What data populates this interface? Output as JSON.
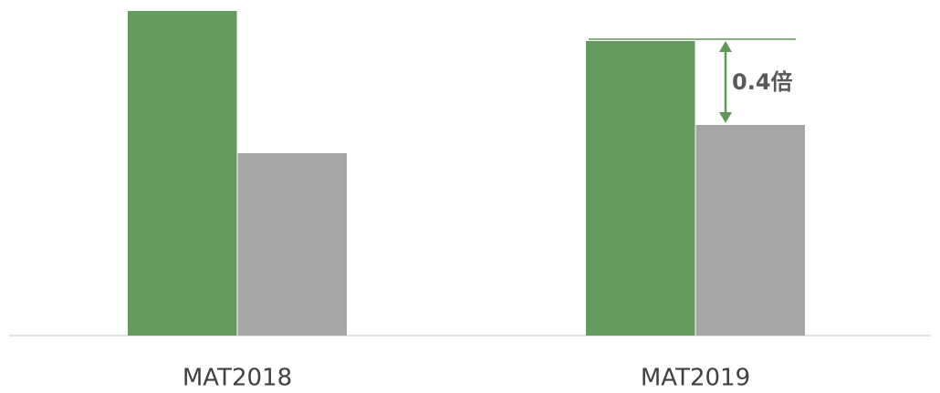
{
  "chart_data": {
    "type": "bar",
    "categories": [
      "MAT2018",
      "MAT2019"
    ],
    "series": [
      {
        "color": "#659a5e",
        "values": [
          356,
          323
        ]
      },
      {
        "color": "#a5a5a5",
        "values": [
          200,
          231
        ]
      }
    ],
    "ylim": [
      0,
      360
    ],
    "annotation": "0.4倍",
    "annotation_color": "#5e9a55"
  }
}
